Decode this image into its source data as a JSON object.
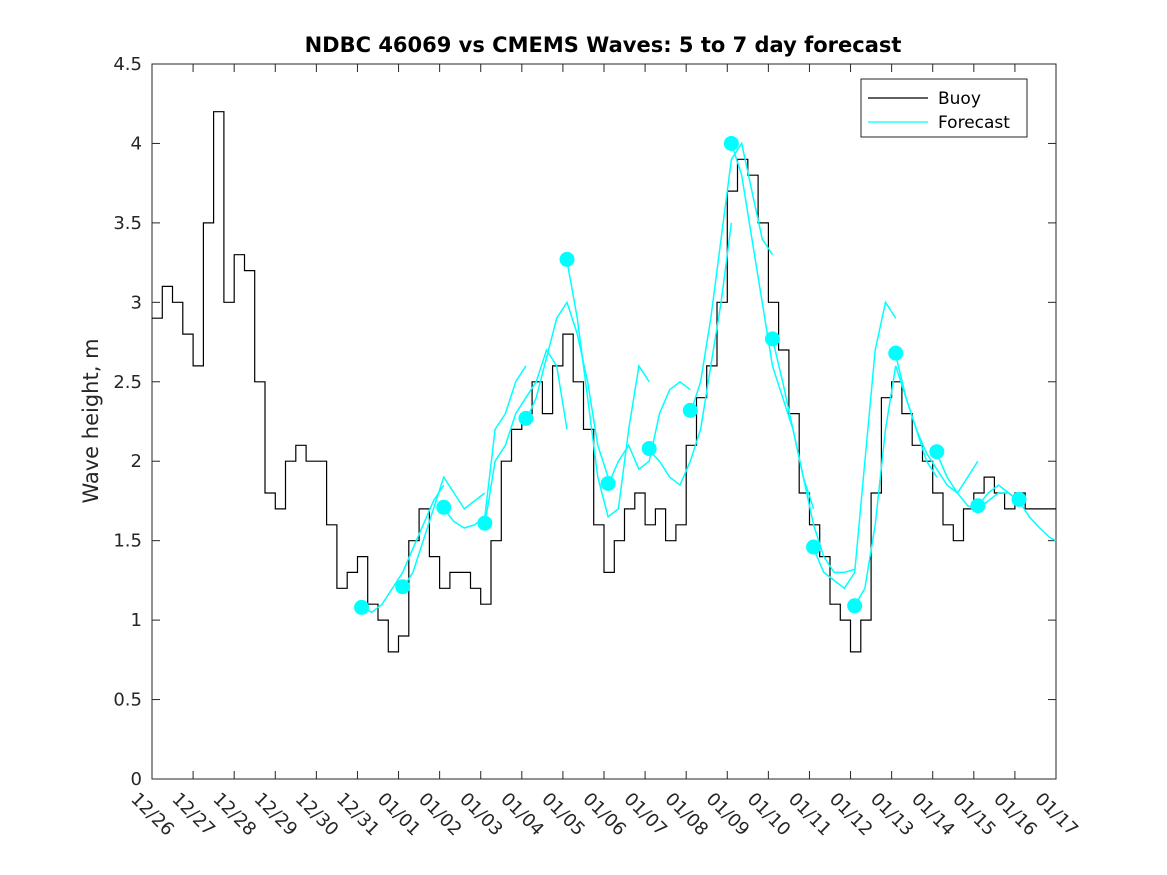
{
  "chart_data": {
    "type": "line",
    "title": "NDBC 46069 vs CMEMS Waves: 5 to 7 day forecast",
    "xlabel": "",
    "ylabel": "Wave height, m",
    "ylim": [
      0,
      4.5
    ],
    "yticks": [
      "0",
      "0.5",
      "1",
      "1.5",
      "2",
      "2.5",
      "3",
      "3.5",
      "4",
      "4.5"
    ],
    "xlim_days": [
      0,
      22
    ],
    "xtick_labels": [
      "12/26",
      "12/27",
      "12/28",
      "12/29",
      "12/30",
      "12/31",
      "01/01",
      "01/02",
      "01/03",
      "01/04",
      "01/05",
      "01/06",
      "01/07",
      "01/08",
      "01/09",
      "01/10",
      "01/11",
      "01/12",
      "01/13",
      "01/14",
      "01/15",
      "01/16",
      "01/17"
    ],
    "legend": {
      "position": "top-right",
      "entries": [
        "Buoy",
        "Forecast"
      ]
    },
    "colors": {
      "buoy": "#000000",
      "forecast": "#00ffff"
    },
    "buoy": {
      "name": "Buoy",
      "x": [
        0,
        0.25,
        0.5,
        0.75,
        1,
        1.25,
        1.5,
        1.75,
        2,
        2.25,
        2.5,
        2.75,
        3,
        3.25,
        3.5,
        3.75,
        4,
        4.25,
        4.5,
        4.75,
        5,
        5.25,
        5.5,
        5.75,
        6,
        6.25,
        6.5,
        6.75,
        7,
        7.25,
        7.5,
        7.75,
        8,
        8.25,
        8.5,
        8.75,
        9,
        9.25,
        9.5,
        9.75,
        10,
        10.25,
        10.5,
        10.75,
        11,
        11.25,
        11.5,
        11.75,
        12,
        12.25,
        12.5,
        12.75,
        13,
        13.25,
        13.5,
        13.75,
        14,
        14.25,
        14.5,
        14.75,
        15,
        15.25,
        15.5,
        15.75,
        16,
        16.25,
        16.5,
        16.75,
        17,
        17.25,
        17.5,
        17.75,
        18,
        18.25,
        18.5,
        18.75,
        19,
        19.25,
        19.5,
        19.75,
        20,
        20.25,
        20.5,
        20.75,
        21,
        21.25
      ],
      "y": [
        2.9,
        3.1,
        3.0,
        2.8,
        2.6,
        3.5,
        4.2,
        3.0,
        3.3,
        3.2,
        2.5,
        1.8,
        1.7,
        2.0,
        2.1,
        2.0,
        2.0,
        1.6,
        1.2,
        1.3,
        1.4,
        1.1,
        1.0,
        0.8,
        0.9,
        1.5,
        1.7,
        1.4,
        1.2,
        1.3,
        1.3,
        1.2,
        1.1,
        1.5,
        2.0,
        2.2,
        2.3,
        2.5,
        2.3,
        2.6,
        2.8,
        2.5,
        2.2,
        1.6,
        1.3,
        1.5,
        1.7,
        1.8,
        1.6,
        1.7,
        1.5,
        1.6,
        2.1,
        2.4,
        2.6,
        3.0,
        3.7,
        3.9,
        3.8,
        3.5,
        3.0,
        2.7,
        2.3,
        1.8,
        1.6,
        1.4,
        1.1,
        1.0,
        0.8,
        1.0,
        1.8,
        2.4,
        2.5,
        2.3,
        2.1,
        2.0,
        1.8,
        1.6,
        1.5,
        1.7,
        1.8,
        1.9,
        1.8,
        1.7,
        1.8,
        1.7
      ]
    },
    "forecast_runs": [
      {
        "x": [
          5.1,
          5.35,
          5.6,
          5.85,
          6.1,
          6.35,
          6.6,
          6.85,
          7.1
        ],
        "y": [
          1.08,
          1.05,
          1.1,
          1.2,
          1.3,
          1.45,
          1.6,
          1.75,
          1.85
        ]
      },
      {
        "x": [
          6.1,
          6.35,
          6.6,
          6.85,
          7.1,
          7.35,
          7.6,
          7.85,
          8.1
        ],
        "y": [
          1.2,
          1.3,
          1.5,
          1.7,
          1.9,
          1.8,
          1.7,
          1.75,
          1.8
        ]
      },
      {
        "x": [
          7.1,
          7.35,
          7.6,
          7.85,
          8.1,
          8.35,
          8.6,
          8.85,
          9.1
        ],
        "y": [
          1.7,
          1.62,
          1.58,
          1.6,
          1.65,
          2.2,
          2.3,
          2.5,
          2.6
        ]
      },
      {
        "x": [
          8.1,
          8.35,
          8.6,
          8.85,
          9.1,
          9.35,
          9.6,
          9.85,
          10.1
        ],
        "y": [
          1.6,
          2.0,
          2.1,
          2.3,
          2.4,
          2.5,
          2.7,
          2.6,
          2.2
        ]
      },
      {
        "x": [
          9.1,
          9.35,
          9.6,
          9.85,
          10.1,
          10.35,
          10.6,
          10.85,
          11.1
        ],
        "y": [
          2.25,
          2.4,
          2.65,
          2.9,
          3.0,
          2.8,
          2.5,
          2.1,
          1.9
        ]
      },
      {
        "x": [
          10.1,
          10.35,
          10.6,
          10.85,
          11.1,
          11.35,
          11.6,
          11.85,
          12.1
        ],
        "y": [
          3.26,
          2.9,
          2.4,
          1.9,
          1.65,
          1.7,
          2.2,
          2.6,
          2.5
        ]
      },
      {
        "x": [
          11.1,
          11.35,
          11.6,
          11.85,
          12.1,
          12.35,
          12.6,
          12.85,
          13.1
        ],
        "y": [
          1.85,
          2.0,
          2.1,
          1.95,
          2.0,
          2.3,
          2.45,
          2.5,
          2.45
        ]
      },
      {
        "x": [
          12.1,
          12.35,
          12.6,
          12.85,
          13.1,
          13.35,
          13.6,
          13.85,
          14.1
        ],
        "y": [
          2.07,
          2.0,
          1.9,
          1.85,
          2.0,
          2.2,
          2.6,
          3.0,
          3.5
        ]
      },
      {
        "x": [
          13.1,
          13.35,
          13.6,
          13.85,
          14.1,
          14.35,
          14.6,
          14.85,
          15.1
        ],
        "y": [
          2.3,
          2.5,
          2.9,
          3.4,
          3.9,
          4.0,
          3.7,
          3.4,
          3.3
        ]
      },
      {
        "x": [
          14.1,
          14.35,
          14.6,
          14.85,
          15.1,
          15.35,
          15.6,
          15.85,
          16.1
        ],
        "y": [
          4.0,
          3.8,
          3.4,
          3.0,
          2.6,
          2.4,
          2.2,
          1.9,
          1.7
        ]
      },
      {
        "x": [
          15.1,
          15.35,
          15.6,
          15.85,
          16.1,
          16.35,
          16.6,
          16.85,
          17.1
        ],
        "y": [
          2.77,
          2.5,
          2.2,
          1.9,
          1.6,
          1.4,
          1.3,
          1.3,
          1.32
        ]
      },
      {
        "x": [
          16.1,
          16.35,
          16.6,
          16.85,
          17.1,
          17.35,
          17.6,
          17.85,
          18.1
        ],
        "y": [
          1.45,
          1.3,
          1.25,
          1.2,
          1.3,
          2.0,
          2.7,
          3.0,
          2.9
        ]
      },
      {
        "x": [
          17.1,
          17.35,
          17.6,
          17.85,
          18.1,
          18.35,
          18.6,
          18.85,
          19.1
        ],
        "y": [
          1.09,
          1.2,
          1.6,
          2.2,
          2.6,
          2.4,
          2.2,
          2.0,
          1.9
        ]
      },
      {
        "x": [
          18.1,
          18.35,
          18.6,
          18.85,
          19.1,
          19.35,
          19.6,
          19.85,
          20.1
        ],
        "y": [
          2.67,
          2.4,
          2.2,
          2.05,
          1.95,
          1.85,
          1.8,
          1.9,
          2.0
        ]
      },
      {
        "x": [
          19.1,
          19.35,
          19.6,
          19.85,
          20.1,
          20.35,
          20.6,
          20.85,
          21.1
        ],
        "y": [
          2.05,
          1.9,
          1.8,
          1.72,
          1.7,
          1.75,
          1.8,
          1.8,
          1.75
        ]
      },
      {
        "x": [
          20.1,
          20.35,
          20.6,
          20.85,
          21.1,
          21.35,
          21.6,
          21.85,
          22.0
        ],
        "y": [
          1.72,
          1.8,
          1.85,
          1.8,
          1.75,
          1.65,
          1.58,
          1.52,
          1.5
        ]
      }
    ],
    "forecast_markers": {
      "x": [
        5.1,
        6.1,
        7.1,
        8.1,
        9.1,
        10.1,
        11.1,
        12.1,
        13.1,
        14.1,
        15.1,
        16.1,
        17.1,
        18.1,
        19.1,
        20.1,
        21.1
      ],
      "y": [
        1.08,
        1.21,
        1.71,
        1.61,
        2.27,
        3.27,
        1.86,
        2.08,
        2.32,
        4.0,
        2.77,
        1.46,
        1.09,
        2.68,
        2.06,
        1.72,
        1.76
      ]
    }
  }
}
